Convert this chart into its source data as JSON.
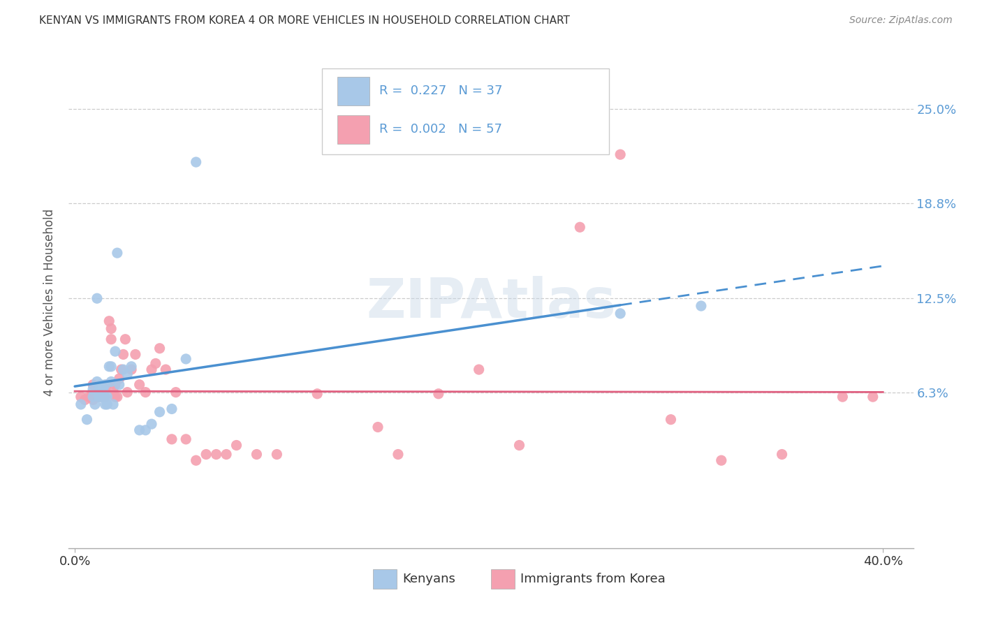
{
  "title": "KENYAN VS IMMIGRANTS FROM KOREA 4 OR MORE VEHICLES IN HOUSEHOLD CORRELATION CHART",
  "source": "Source: ZipAtlas.com",
  "ylabel": "4 or more Vehicles in Household",
  "xlim": [
    -0.003,
    0.415
  ],
  "ylim": [
    -0.04,
    0.285
  ],
  "x_tick_labels": [
    "0.0%",
    "40.0%"
  ],
  "x_tick_values": [
    0.0,
    0.4
  ],
  "y_tick_labels_right": [
    "6.3%",
    "12.5%",
    "18.8%",
    "25.0%"
  ],
  "y_tick_values_right": [
    0.063,
    0.125,
    0.188,
    0.25
  ],
  "kenyan_R": "0.227",
  "kenyan_N": "37",
  "korea_R": "0.002",
  "korea_N": "57",
  "kenyan_color": "#a8c8e8",
  "korea_color": "#f4a0b0",
  "kenyan_line_color": "#4a90d0",
  "korea_line_color": "#e06080",
  "watermark": "ZIPAtlas",
  "background_color": "#ffffff",
  "grid_color": "#cccccc",
  "kenyan_x": [
    0.003,
    0.006,
    0.009,
    0.009,
    0.01,
    0.011,
    0.011,
    0.012,
    0.012,
    0.013,
    0.013,
    0.014,
    0.014,
    0.015,
    0.015,
    0.015,
    0.016,
    0.016,
    0.017,
    0.018,
    0.018,
    0.019,
    0.02,
    0.021,
    0.022,
    0.024,
    0.026,
    0.028,
    0.032,
    0.035,
    0.038,
    0.042,
    0.048,
    0.055,
    0.06,
    0.27,
    0.31
  ],
  "kenyan_y": [
    0.055,
    0.045,
    0.06,
    0.065,
    0.055,
    0.125,
    0.07,
    0.06,
    0.065,
    0.06,
    0.068,
    0.06,
    0.065,
    0.055,
    0.06,
    0.068,
    0.055,
    0.06,
    0.08,
    0.07,
    0.08,
    0.055,
    0.09,
    0.155,
    0.068,
    0.078,
    0.075,
    0.08,
    0.038,
    0.038,
    0.042,
    0.05,
    0.052,
    0.085,
    0.215,
    0.115,
    0.12
  ],
  "korea_x": [
    0.003,
    0.005,
    0.007,
    0.008,
    0.009,
    0.009,
    0.01,
    0.011,
    0.012,
    0.013,
    0.014,
    0.015,
    0.015,
    0.016,
    0.017,
    0.018,
    0.018,
    0.019,
    0.02,
    0.02,
    0.021,
    0.022,
    0.023,
    0.024,
    0.025,
    0.026,
    0.028,
    0.03,
    0.032,
    0.035,
    0.038,
    0.04,
    0.042,
    0.045,
    0.048,
    0.05,
    0.055,
    0.06,
    0.065,
    0.07,
    0.075,
    0.08,
    0.09,
    0.1,
    0.12,
    0.15,
    0.16,
    0.18,
    0.2,
    0.22,
    0.25,
    0.27,
    0.295,
    0.32,
    0.35,
    0.38,
    0.395
  ],
  "korea_y": [
    0.06,
    0.058,
    0.06,
    0.06,
    0.058,
    0.068,
    0.06,
    0.06,
    0.06,
    0.062,
    0.06,
    0.06,
    0.065,
    0.068,
    0.11,
    0.105,
    0.098,
    0.065,
    0.06,
    0.068,
    0.06,
    0.072,
    0.078,
    0.088,
    0.098,
    0.063,
    0.078,
    0.088,
    0.068,
    0.063,
    0.078,
    0.082,
    0.092,
    0.078,
    0.032,
    0.063,
    0.032,
    0.018,
    0.022,
    0.022,
    0.022,
    0.028,
    0.022,
    0.022,
    0.062,
    0.04,
    0.022,
    0.062,
    0.078,
    0.028,
    0.172,
    0.22,
    0.045,
    0.018,
    0.022,
    0.06,
    0.06
  ]
}
